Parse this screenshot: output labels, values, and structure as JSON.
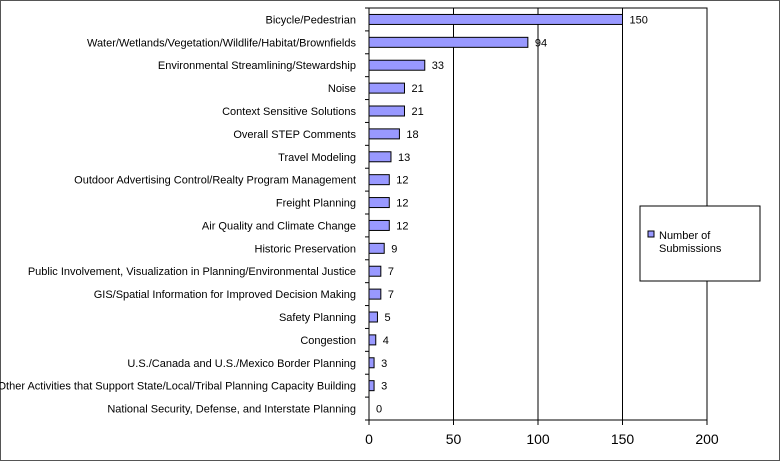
{
  "chart_data": {
    "type": "bar",
    "orientation": "horizontal",
    "categories": [
      "Bicycle/Pedestrian",
      "Water/Wetlands/Vegetation/Wildlife/Habitat/Brownfields",
      "Environmental Streamlining/Stewardship",
      "Noise",
      "Context Sensitive Solutions",
      "Overall STEP Comments",
      "Travel Modeling",
      "Outdoor Advertising Control/Realty Program Management",
      "Freight Planning",
      "Air Quality and Climate Change",
      "Historic Preservation",
      "Public Involvement, Visualization in Planning/Environmental Justice",
      "GIS/Spatial Information for Improved Decision Making",
      "Safety Planning",
      "Congestion",
      "U.S./Canada and U.S./Mexico Border Planning",
      "Other Activities that Support State/Local/Tribal Planning Capacity Building",
      "National Security, Defense, and Interstate Planning"
    ],
    "series": [
      {
        "name": "Number of Submissions",
        "values": [
          150,
          94,
          33,
          21,
          21,
          18,
          13,
          12,
          12,
          12,
          9,
          7,
          7,
          5,
          4,
          3,
          3,
          0
        ]
      }
    ],
    "xlim": [
      0,
      200
    ],
    "xticks": [
      "0",
      "50",
      "100",
      "150",
      "200"
    ],
    "title": "",
    "xlabel": "",
    "ylabel": "",
    "grid": "vertical",
    "legend_position": "right",
    "bar_color": "#9999ff",
    "bar_edge_color": "#000000"
  }
}
